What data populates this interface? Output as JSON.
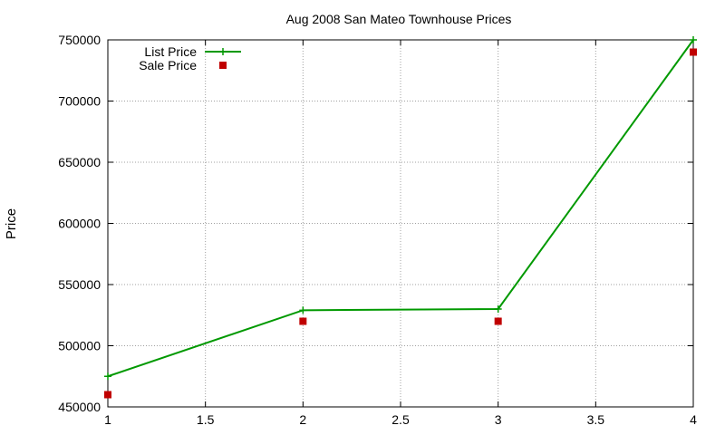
{
  "chart_data": {
    "type": "line",
    "title": "Aug 2008 San Mateo Townhouse Prices",
    "xlabel": "",
    "ylabel": "Price",
    "xlim": [
      1,
      4
    ],
    "ylim": [
      450000,
      750000
    ],
    "xticks": [
      "1",
      "1.5",
      "2",
      "2.5",
      "3",
      "3.5",
      "4"
    ],
    "xtick_values": [
      1,
      1.5,
      2,
      2.5,
      3,
      3.5,
      4
    ],
    "yticks": [
      "450000",
      "500000",
      "550000",
      "600000",
      "650000",
      "700000",
      "750000"
    ],
    "ytick_values": [
      450000,
      500000,
      550000,
      600000,
      650000,
      700000,
      750000
    ],
    "grid": true,
    "legend_position": "top-left",
    "series": [
      {
        "name": "List Price",
        "style": "linespoints",
        "marker": "plus",
        "color": "#009900",
        "x": [
          1,
          2,
          3,
          4
        ],
        "values": [
          475000,
          529000,
          530000,
          750000
        ]
      },
      {
        "name": "Sale Price",
        "style": "points",
        "marker": "square",
        "color": "#c00000",
        "x": [
          1,
          2,
          3,
          4
        ],
        "values": [
          460000,
          520000,
          520000,
          740000
        ]
      }
    ]
  }
}
